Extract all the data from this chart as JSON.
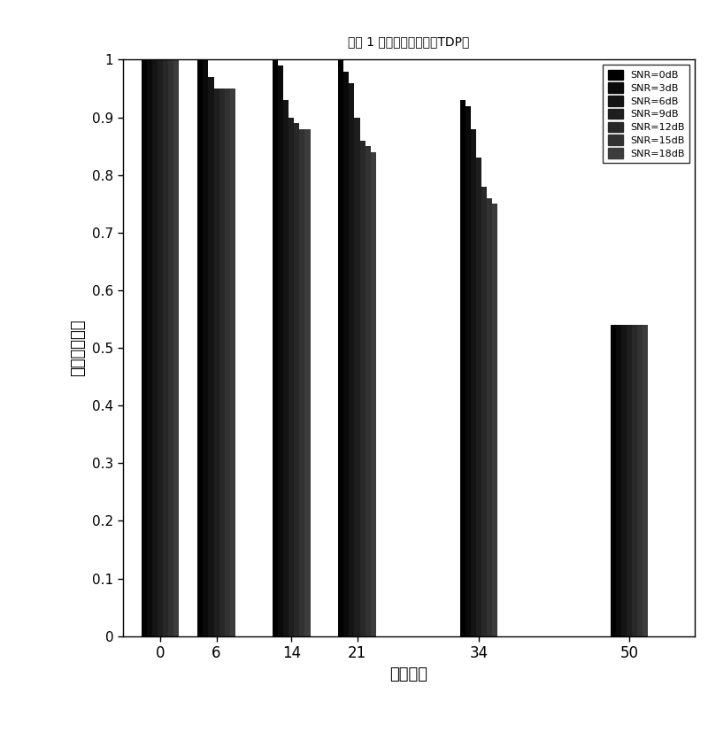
{
  "title": "用户 1 多路径延迟估计（TDP）",
  "xlabel": "路径延迟",
  "ylabel": "正确估计概率",
  "xtick_labels": [
    "0",
    "6",
    "14",
    "21",
    "34",
    "50"
  ],
  "xtick_positions": [
    0,
    6,
    14,
    21,
    34,
    50
  ],
  "ylim": [
    0,
    1
  ],
  "yticks": [
    0,
    0.1,
    0.2,
    0.3,
    0.4,
    0.5,
    0.6,
    0.7,
    0.8,
    0.9,
    1
  ],
  "legend_labels": [
    "SNR=0dB",
    "SNR=3dB",
    "SNR=6dB",
    "SNR=9dB",
    "SNR=12dB",
    "SNR=15dB",
    "SNR=18dB"
  ],
  "bar_heights": {
    "0": [
      1.0,
      1.0,
      1.0,
      1.0,
      1.0,
      1.0,
      1.0
    ],
    "6": [
      1.0,
      1.0,
      0.97,
      0.95,
      0.95,
      0.95,
      0.95
    ],
    "14": [
      1.0,
      0.99,
      0.93,
      0.9,
      0.89,
      0.88,
      0.88
    ],
    "21": [
      1.0,
      0.98,
      0.96,
      0.9,
      0.86,
      0.85,
      0.84
    ],
    "34": [
      0.93,
      0.92,
      0.88,
      0.83,
      0.78,
      0.76,
      0.75
    ],
    "50": [
      0.54,
      0.54,
      0.54,
      0.54,
      0.54,
      0.54,
      0.54
    ]
  },
  "bar_colors": [
    "#000000",
    "#0a0a0a",
    "#141414",
    "#1e1e1e",
    "#282828",
    "#323232",
    "#3c3c3c"
  ],
  "group_width": 4.0,
  "xlim": [
    -4,
    57
  ],
  "background_color": "#ffffff",
  "figsize": [
    8.0,
    8.27
  ],
  "dpi": 100
}
